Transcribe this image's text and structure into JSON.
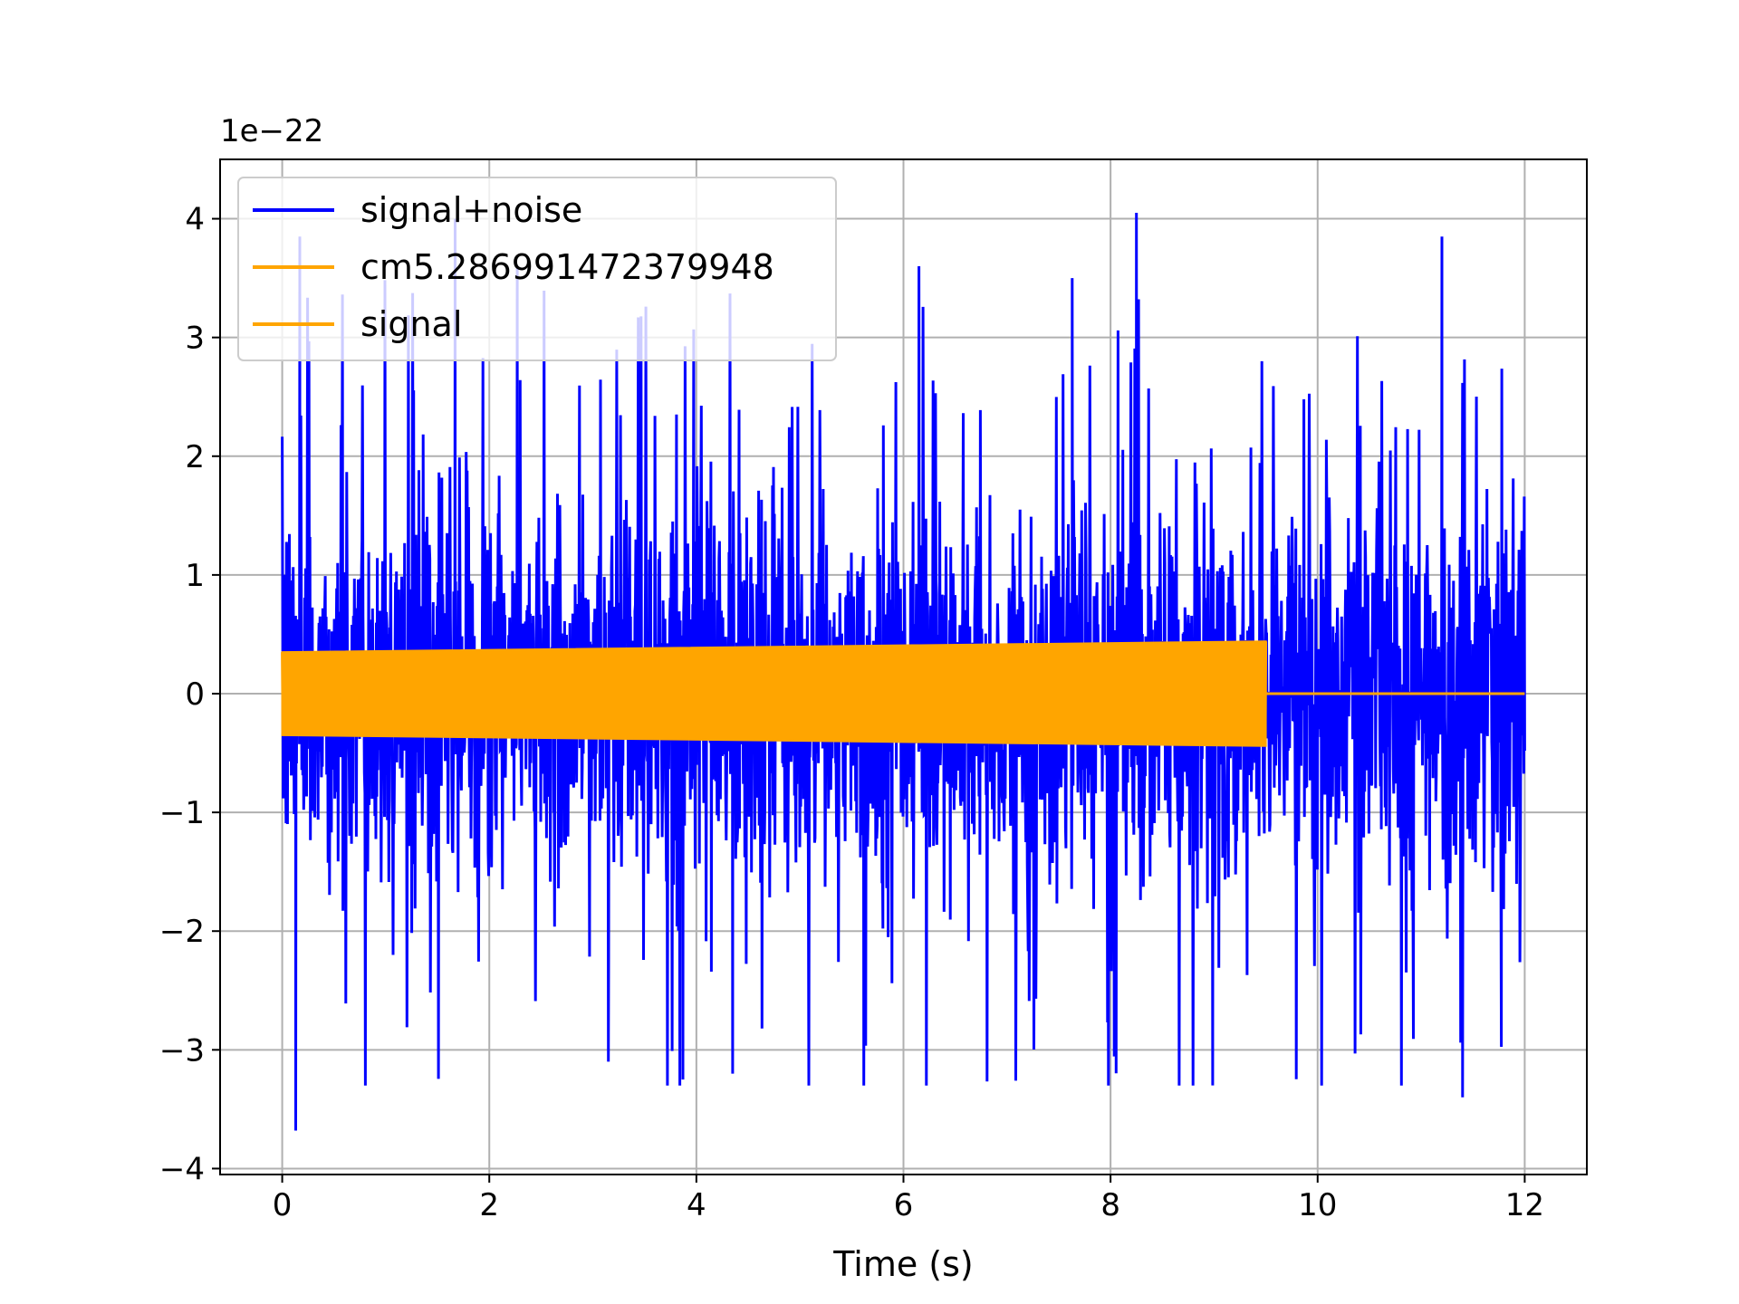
{
  "chart_data": {
    "type": "line",
    "title": "",
    "xlabel": "Time (s)",
    "ylabel": "",
    "y_offset_label": "1e−22",
    "xlim": [
      -0.6,
      12.6
    ],
    "ylim": [
      -4.05,
      4.5
    ],
    "xticks": [
      0,
      2,
      4,
      6,
      8,
      10,
      12
    ],
    "xtick_labels": [
      "0",
      "2",
      "4",
      "6",
      "8",
      "10",
      "12"
    ],
    "yticks": [
      4,
      3,
      2,
      1,
      0,
      -1,
      -2,
      -3,
      -4
    ],
    "ytick_labels": [
      "4",
      "3",
      "2",
      "1",
      "0",
      "−1",
      "−2",
      "−3",
      "−4"
    ],
    "grid": true,
    "legend_position": "top-left",
    "series": [
      {
        "name": "signal+noise",
        "color": "#0000ff",
        "x_range": [
          0,
          12
        ],
        "envelope_note": "dense noise, typical range ±1.5e-22, peaks near ±4e-22",
        "notable_peaks": [
          {
            "x": 0.17,
            "y": 3.85
          },
          {
            "x": 0.13,
            "y": -3.68
          },
          {
            "x": 1.67,
            "y": 4.0
          },
          {
            "x": 2.27,
            "y": 3.6
          },
          {
            "x": 6.15,
            "y": 3.6
          },
          {
            "x": 7.63,
            "y": 3.5
          },
          {
            "x": 8.25,
            "y": 4.05
          },
          {
            "x": 11.2,
            "y": 3.85
          },
          {
            "x": 11.4,
            "y": -3.4
          },
          {
            "x": 3.15,
            "y": -3.1
          },
          {
            "x": 3.87,
            "y": -3.25
          },
          {
            "x": 4.35,
            "y": -3.2
          }
        ]
      },
      {
        "name": "cm5.286991472379948",
        "color": "#ffa500",
        "x_range": [
          0,
          9.5
        ],
        "amplitude_start": 0.35,
        "amplitude_end": 0.44
      },
      {
        "name": "signal",
        "color": "#ffa500",
        "x_range": [
          0,
          12
        ],
        "amplitude_start": 0.35,
        "amplitude_end": 0.44,
        "signal_end": 9.5,
        "value_after_end": 0
      }
    ]
  }
}
